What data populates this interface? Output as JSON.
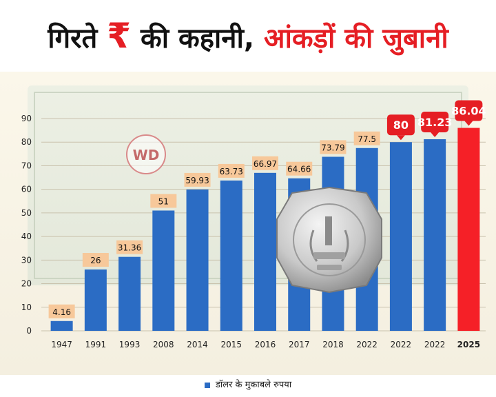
{
  "title": {
    "part1": "गिरते",
    "rupee_symbol": "₹",
    "part2": "की कहानी,",
    "part3": "आंकड़ों की जुबानी"
  },
  "watermark": "WD",
  "legend": {
    "label": "डॉलर के मुकाबले रुपया"
  },
  "colors": {
    "bar": "#2b6cc4",
    "highlight_bar": "#f52027",
    "label_box": "#f7c89a",
    "highlight_label": "#e51e24",
    "title_red": "#e51e24"
  },
  "chart_data": {
    "type": "bar",
    "categories": [
      "1947",
      "1991",
      "1993",
      "2008",
      "2014",
      "2015",
      "2016",
      "2017",
      "2018",
      "2022",
      "2022",
      "2022",
      "2025"
    ],
    "values": [
      4.16,
      26,
      31.36,
      51,
      59.93,
      63.73,
      66.97,
      64.66,
      73.79,
      77.5,
      80,
      81.23,
      86.04
    ],
    "value_labels": [
      "4.16",
      "26",
      "31.36",
      "51",
      "59.93",
      "63.73",
      "66.97",
      "64.66",
      "73.79",
      "77.5",
      "80",
      "81.23",
      "86.04"
    ],
    "highlight_labels": [
      false,
      false,
      false,
      false,
      false,
      false,
      false,
      false,
      false,
      false,
      true,
      true,
      true
    ],
    "highlight_bars": [
      false,
      false,
      false,
      false,
      false,
      false,
      false,
      false,
      false,
      false,
      false,
      false,
      true
    ],
    "yticks": [
      "0",
      "10",
      "20",
      "30",
      "40",
      "50",
      "60",
      "70",
      "80",
      "90"
    ],
    "ylim": [
      0,
      90
    ],
    "legend": [
      "डॉलर के मुकाबले रुपया"
    ],
    "legend_position": "bottom"
  }
}
